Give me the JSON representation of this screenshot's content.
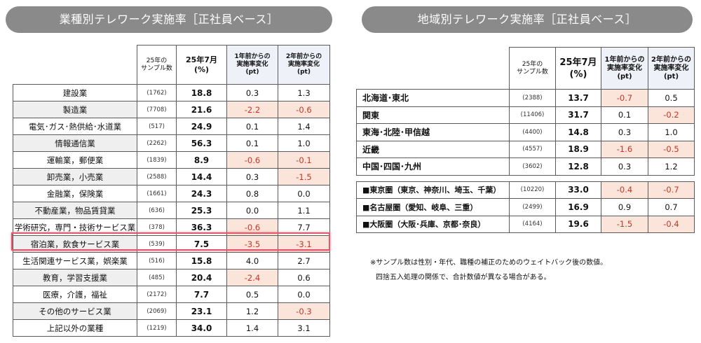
{
  "left_title": "業種別テレワーク実施率［正社員ベース］",
  "right_title": "地域別テレワーク実施率［正社員ベース］",
  "left_header": {
    "samp": "25年の\nサンプル数",
    "rate": "25年7月\n(%)",
    "chg1": "1年前からの\n実施率変化\n(pt)",
    "chg2": "2年前からの\n実施率変化\n(pt)"
  },
  "right_header": {
    "samp": "25年の\nサンプル数",
    "rate": "25年7月\n(%)",
    "chg1": "1年前からの\n実施率変化\n(pt)",
    "chg2": "2年前からの\n実施率変化\n(pt)"
  },
  "industries": [
    {
      "name": "建設業",
      "samp": "(1762)",
      "rate": "18.8",
      "chg1": "0.3",
      "chg2": "1.3",
      "neg1": false,
      "neg2": false
    },
    {
      "name": "製造業",
      "samp": "(7708)",
      "rate": "21.6",
      "chg1": "-2.2",
      "chg2": "-0.6",
      "neg1": true,
      "neg2": true
    },
    {
      "name": "電気･ガス･熱供給･水道業",
      "samp": "(517)",
      "rate": "24.9",
      "chg1": "0.1",
      "chg2": "1.4",
      "neg1": false,
      "neg2": false
    },
    {
      "name": "情報通信業",
      "samp": "(2262)",
      "rate": "56.3",
      "chg1": "0.1",
      "chg2": "1.0",
      "neg1": false,
      "neg2": false
    },
    {
      "name": "運輸業，郵便業",
      "samp": "(1839)",
      "rate": "8.9",
      "chg1": "-0.6",
      "chg2": "-0.1",
      "neg1": true,
      "neg2": true
    },
    {
      "name": "卸売業，小売業",
      "samp": "(2588)",
      "rate": "14.4",
      "chg1": "0.3",
      "chg2": "-1.5",
      "neg1": false,
      "neg2": true
    },
    {
      "name": "金融業，保険業",
      "samp": "(1661)",
      "rate": "24.3",
      "chg1": "0.8",
      "chg2": "0.0",
      "neg1": false,
      "neg2": false
    },
    {
      "name": "不動産業，物品賃貸業",
      "samp": "(636)",
      "rate": "25.3",
      "chg1": "0.0",
      "chg2": "1.1",
      "neg1": false,
      "neg2": false
    },
    {
      "name": "学術研究，専門・技術サービス業",
      "samp": "(378)",
      "rate": "36.3",
      "chg1": "-0.6",
      "chg2": "7.7",
      "neg1": true,
      "neg2": false
    },
    {
      "name": "宿泊業，飲食サービス業",
      "samp": "(539)",
      "rate": "7.5",
      "chg1": "-3.5",
      "chg2": "-3.1",
      "neg1": true,
      "neg2": true
    },
    {
      "name": "生活関連サービス業，娯楽業",
      "samp": "(516)",
      "rate": "15.8",
      "chg1": "4.0",
      "chg2": "2.7",
      "neg1": false,
      "neg2": false
    },
    {
      "name": "教育，学習支援業",
      "samp": "(485)",
      "rate": "20.4",
      "chg1": "-2.4",
      "chg2": "0.6",
      "neg1": true,
      "neg2": false
    },
    {
      "name": "医療，介護，福祉",
      "samp": "(2172)",
      "rate": "7.7",
      "chg1": "0.5",
      "chg2": "0.0",
      "neg1": false,
      "neg2": false
    },
    {
      "name": "その他のサービス業",
      "samp": "(2069)",
      "rate": "23.1",
      "chg1": "1.2",
      "chg2": "-0.3",
      "neg1": false,
      "neg2": true
    },
    {
      "name": "上記以外の業種",
      "samp": "(1219)",
      "rate": "34.0",
      "chg1": "1.4",
      "chg2": "3.1",
      "neg1": false,
      "neg2": false
    }
  ],
  "regions": [
    {
      "name": "北海道･東北",
      "samp": "(2388)",
      "rate": "13.7",
      "chg1": "-0.7",
      "chg2": "0.5",
      "neg1": true,
      "neg2": false
    },
    {
      "name": "関東",
      "samp": "(11406)",
      "rate": "31.7",
      "chg1": "0.1",
      "chg2": "-0.2",
      "neg1": false,
      "neg2": true
    },
    {
      "name": "東海･北陸･甲信越",
      "samp": "(4400)",
      "rate": "14.8",
      "chg1": "0.3",
      "chg2": "1.0",
      "neg1": false,
      "neg2": false
    },
    {
      "name": "近畿",
      "samp": "(4557)",
      "rate": "18.9",
      "chg1": "-1.6",
      "chg2": "-0.5",
      "neg1": true,
      "neg2": true
    },
    {
      "name": "中国･四国･九州",
      "samp": "(3602)",
      "rate": "12.8",
      "chg1": "0.3",
      "chg2": "1.2",
      "neg1": false,
      "neg2": false
    }
  ],
  "metros": [
    {
      "name": "■東京圏（東京、神奈川、埼玉、千葉）",
      "samp": "(10220)",
      "rate": "33.0",
      "chg1": "-0.4",
      "chg2": "-0.7",
      "neg1": true,
      "neg2": true
    },
    {
      "name": "■名古屋圏（愛知、岐阜、三重）",
      "samp": "(2499)",
      "rate": "16.9",
      "chg1": "0.9",
      "chg2": "0.7",
      "neg1": false,
      "neg2": false
    },
    {
      "name": "■大阪圏（大阪･兵庫、京都･奈良）",
      "samp": "(4164)",
      "rate": "19.6",
      "chg1": "-1.5",
      "chg2": "-0.4",
      "neg1": true,
      "neg2": true
    }
  ],
  "notes": [
    "※サンプル数は性別・年代、職種の補正のためのウェイトバック後の数値。",
    "四捨五入処理の関係で、合計数値が異なる場合がある。"
  ],
  "colors": {
    "negative_bg": "#fbe4d9",
    "negative_text": "#c0392b",
    "highlight": "#e05a6e",
    "pill": "#8a8a8a"
  }
}
